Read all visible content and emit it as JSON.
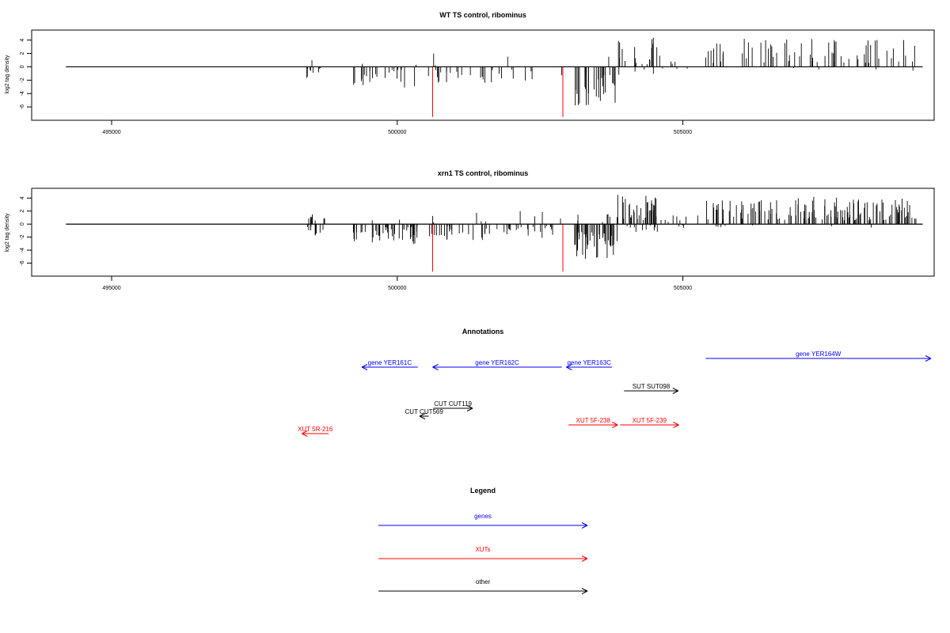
{
  "colors": {
    "gene": "#0000ff",
    "xut": "#ff0000",
    "other": "#000000",
    "marker": "#ff0000",
    "bar": "#000000"
  },
  "chart_data": [
    {
      "type": "bar",
      "title": "WT TS control, ribominus",
      "ylabel": "log2 tag density",
      "xlim": [
        493600,
        509400
      ],
      "ylim": [
        -8,
        5.5
      ],
      "xticks": [
        495000,
        500000,
        505000
      ],
      "yticks": [
        4,
        2,
        0,
        -2,
        -4,
        -6
      ],
      "ytick_labels": [
        "4",
        "2",
        "0",
        "-2",
        "-4",
        "-6"
      ],
      "baseline": [
        494200,
        509200
      ],
      "markers": [
        500620,
        502900
      ],
      "marker_depth": -7.5,
      "bar_spec": {
        "seed": 11,
        "mult": 1
      }
    },
    {
      "type": "bar",
      "title": "xrn1 TS control, ribominus",
      "ylabel": "log2 tag density",
      "xlim": [
        493600,
        509400
      ],
      "ylim": [
        -8,
        5.5
      ],
      "xticks": [
        495000,
        500000,
        505000
      ],
      "yticks": [
        4,
        2,
        0,
        -2,
        -4,
        -6
      ],
      "ytick_labels": [
        "4",
        "2",
        "0",
        "-2",
        "-4",
        "-6"
      ],
      "baseline": [
        494200,
        509200
      ],
      "markers": [
        500620,
        502900
      ],
      "marker_depth": -7.3,
      "bar_spec": {
        "seed": 23,
        "mult": 2
      }
    }
  ],
  "annotations": {
    "title": "Annotations",
    "items": [
      {
        "label": "gene YER161C",
        "class": "gene",
        "start": 500360,
        "end": 499380,
        "row": 2
      },
      {
        "label": "gene YER162C",
        "class": "gene",
        "start": 502880,
        "end": 500620,
        "row": 2
      },
      {
        "label": "gene YER163C",
        "class": "gene",
        "start": 503760,
        "end": 502960,
        "row": 2
      },
      {
        "label": "gene YER164W",
        "class": "gene",
        "start": 505400,
        "end": 509800,
        "row": 1
      },
      {
        "label": "SUT SUT098",
        "class": "other",
        "start": 503970,
        "end": 504920,
        "row": 3
      },
      {
        "label": "CUT CUT119",
        "class": "other",
        "start": 500630,
        "end": 501320,
        "row": 4
      },
      {
        "label": "CUT CUT569",
        "class": "other",
        "start": 500550,
        "end": 500390,
        "row": 5
      },
      {
        "label": "XUT 5F-238",
        "class": "xut",
        "start": 503000,
        "end": 503860,
        "row": 6
      },
      {
        "label": "XUT 5F-239",
        "class": "xut",
        "start": 503900,
        "end": 504930,
        "row": 6
      },
      {
        "label": "XUT 5R-216",
        "class": "xut",
        "start": 498800,
        "end": 498330,
        "row": 7
      }
    ]
  },
  "legend": {
    "title": "Legend",
    "items": [
      {
        "label": "genes",
        "class": "gene"
      },
      {
        "label": "XUTs",
        "class": "xut"
      },
      {
        "label": "other",
        "class": "other"
      }
    ]
  }
}
